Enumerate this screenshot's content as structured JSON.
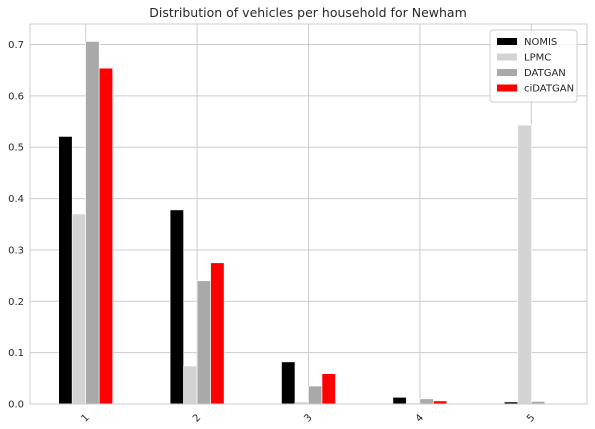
{
  "chart_data": {
    "type": "bar",
    "title": "Distribution of vehicles per household for Newham",
    "xlabel": "",
    "ylabel": "",
    "categories": [
      "1",
      "2",
      "3",
      "4",
      "5"
    ],
    "series": [
      {
        "name": "NOMIS",
        "color": "#000000",
        "values": [
          0.521,
          0.378,
          0.082,
          0.013,
          0.004
        ]
      },
      {
        "name": "LPMC",
        "color": "#d3d3d3",
        "values": [
          0.37,
          0.074,
          0.004,
          0.002,
          0.543
        ]
      },
      {
        "name": "DATGAN",
        "color": "#a9a9a9",
        "values": [
          0.706,
          0.24,
          0.035,
          0.01,
          0.005
        ]
      },
      {
        "name": "ciDATGAN",
        "color": "#ff0000",
        "values": [
          0.654,
          0.275,
          0.059,
          0.006,
          0.001
        ]
      }
    ],
    "ylim": [
      0,
      0.74
    ],
    "yticks": [
      "0.0",
      "0.1",
      "0.2",
      "0.3",
      "0.4",
      "0.5",
      "0.6",
      "0.7"
    ],
    "grid": true,
    "legend_position": "top-right",
    "xtick_rotation": 45
  }
}
